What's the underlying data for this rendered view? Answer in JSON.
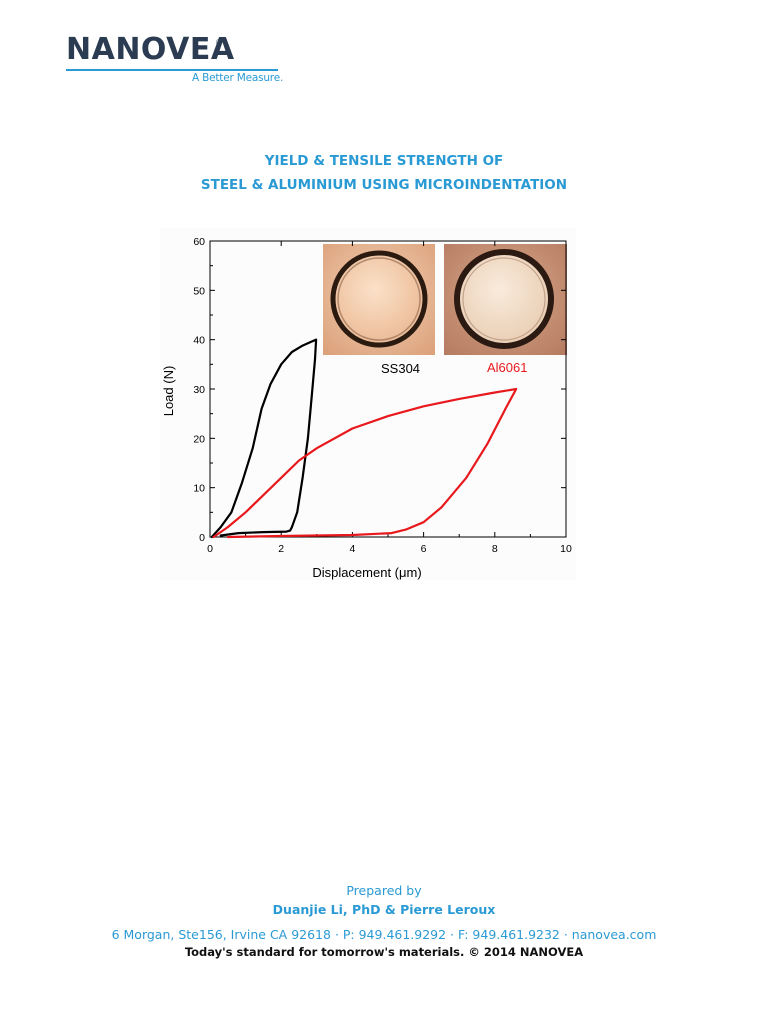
{
  "header": {
    "logo_text": "NANOVEA",
    "logo_reg": "®",
    "logo_tagline": "A Better Measure."
  },
  "title": {
    "line1": "YIELD & TENSILE STRENGTH OF",
    "line2": "STEEL & ALUMINIUM USING MICROINDENTATION"
  },
  "colors": {
    "brand_blue": "#2a9ad4",
    "logo_navy": "#2b3c52",
    "series_ss304": "#000000",
    "series_al6061": "#e8191d"
  },
  "chart_data": {
    "type": "line",
    "xlabel": "Displacement (μm)",
    "ylabel": "Load (N)",
    "xlim": [
      0,
      10
    ],
    "ylim": [
      0,
      60
    ],
    "x_ticks": [
      "0",
      "2",
      "4",
      "6",
      "8",
      "10"
    ],
    "y_ticks": [
      "0",
      "10",
      "20",
      "30",
      "40",
      "50",
      "60"
    ],
    "grid": false,
    "series": [
      {
        "name": "SS304",
        "color": "#000000",
        "x": [
          0.05,
          0.3,
          0.6,
          0.9,
          1.2,
          1.45,
          1.7,
          2.0,
          2.3,
          2.6,
          2.85,
          2.98,
          2.95,
          2.85,
          2.75,
          2.6,
          2.45,
          2.3,
          2.25,
          2.15,
          1.5,
          0.8,
          0.3
        ],
        "y": [
          0,
          2,
          5,
          11,
          18,
          26,
          31,
          35,
          37.5,
          38.8,
          39.6,
          40,
          36,
          28,
          20,
          12,
          5,
          2,
          1.3,
          1.1,
          1,
          0.8,
          0.3
        ]
      },
      {
        "name": "Al6061",
        "color": "#e8191d",
        "x": [
          0.1,
          0.5,
          1.0,
          1.5,
          2.0,
          2.5,
          3.0,
          4.0,
          5.0,
          6.0,
          7.0,
          8.0,
          8.6,
          8.3,
          7.8,
          7.2,
          6.5,
          6.0,
          5.5,
          5.1,
          4.0,
          2.0,
          0.5
        ],
        "y": [
          0,
          2,
          5,
          8.5,
          12,
          15.5,
          18,
          22,
          24.5,
          26.5,
          28,
          29.3,
          30,
          26,
          19,
          12,
          6,
          3,
          1.5,
          0.8,
          0.4,
          0.2,
          0
        ]
      }
    ],
    "annotations": [
      "SS304",
      "Al6061"
    ]
  },
  "footer": {
    "prepared_label": "Prepared by",
    "authors": "Duanjie Li, PhD & Pierre Leroux",
    "address": "6 Morgan, Ste156, Irvine CA 92618 · P: 949.461.9292 · F: 949.461.9232 · nanovea.com",
    "slogan": "Today's standard for tomorrow's materials. © 2014 NANOVEA"
  }
}
